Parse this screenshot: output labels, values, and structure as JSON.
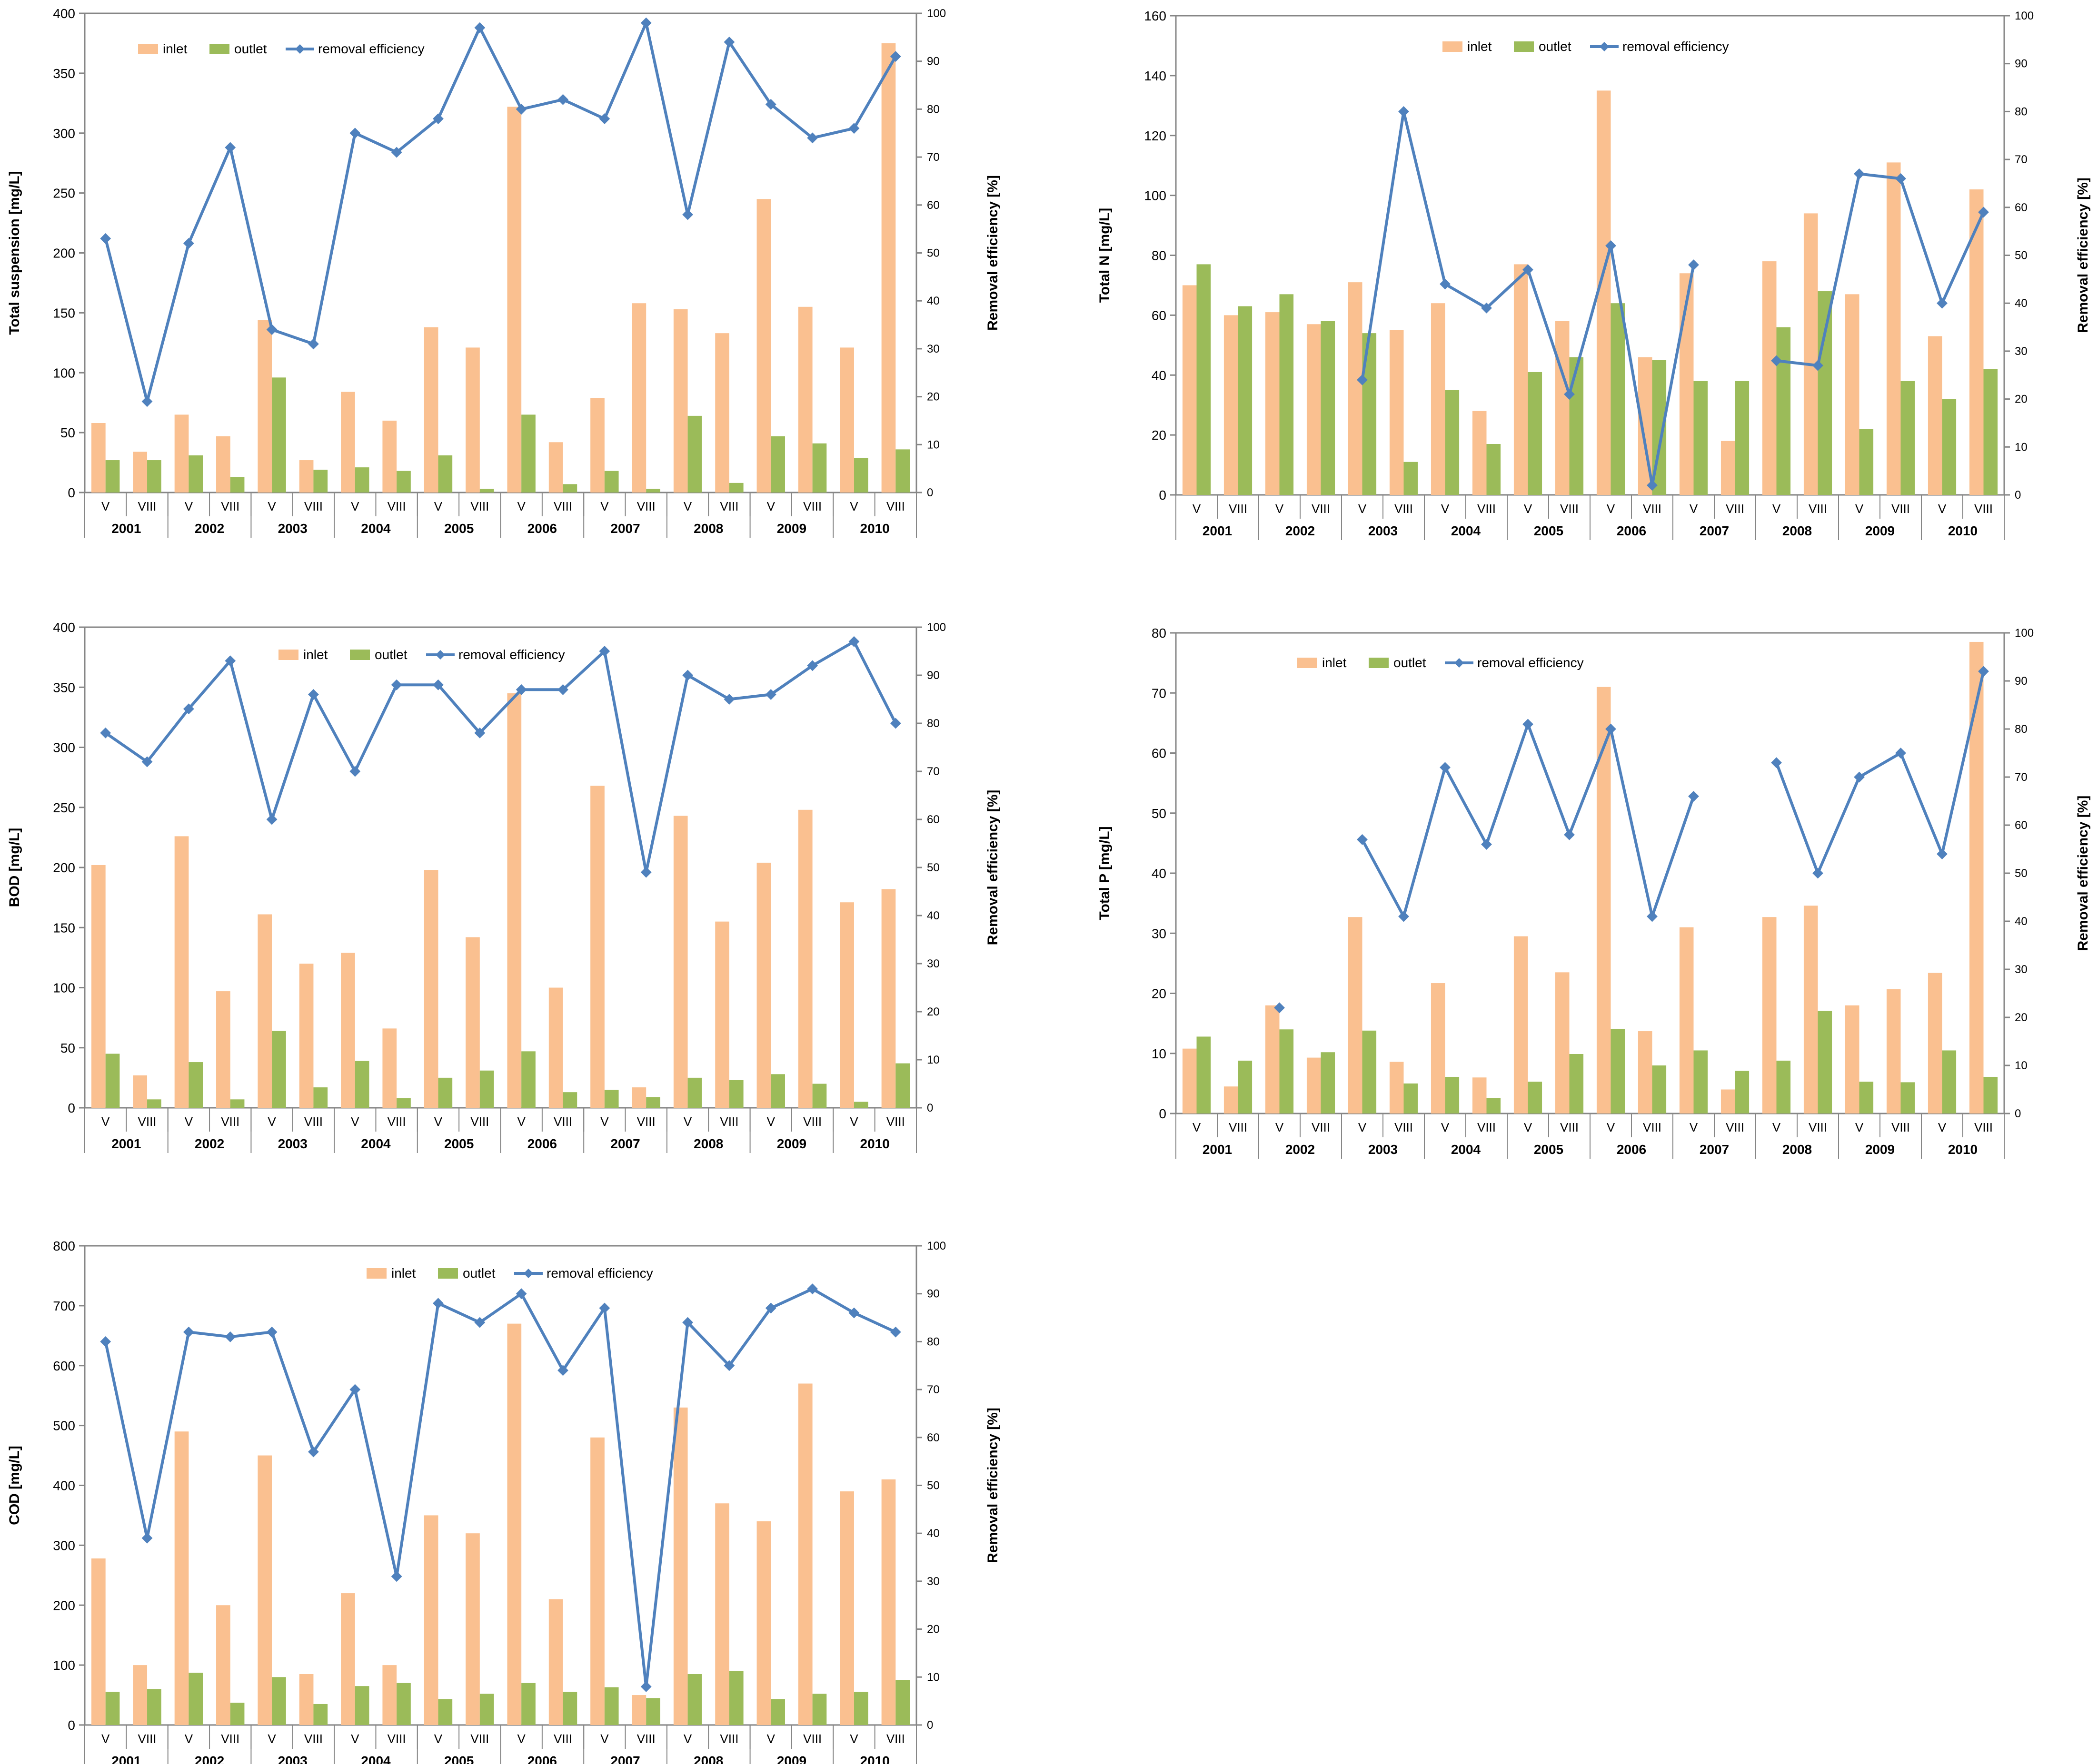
{
  "colors": {
    "inlet": "#fac090",
    "outlet": "#9bbb59",
    "efficiency": "#4f81bd",
    "axis": "#868686",
    "grid": "#d9d9d9",
    "text": "#000000"
  },
  "shared": {
    "years": [
      "2001",
      "2002",
      "2003",
      "2004",
      "2005",
      "2006",
      "2007",
      "2008",
      "2009",
      "2010"
    ],
    "months": [
      "V",
      "VIII"
    ],
    "legend": {
      "inlet": "inlet",
      "outlet": "outlet",
      "efficiency": "removal efficiency"
    },
    "y2label": "Removal efficiency [%]"
  },
  "chart_data": [
    {
      "id": "ts",
      "type": "bar+line",
      "ylabel": "Total suspension [mg/L]",
      "ylim": [
        0,
        400
      ],
      "ystep": 50,
      "y2lim": [
        0,
        100
      ],
      "y2step": 10,
      "legend_position": "top-center",
      "inlet": [
        58,
        34,
        65,
        47,
        144,
        27,
        84,
        60,
        138,
        121,
        322,
        42,
        79,
        158,
        153,
        133,
        245,
        155,
        121,
        375
      ],
      "outlet": [
        27,
        27,
        31,
        13,
        96,
        19,
        21,
        18,
        31,
        3,
        65,
        7,
        18,
        3,
        64,
        8,
        47,
        41,
        29,
        36
      ],
      "efficiency": [
        53,
        19,
        52,
        72,
        34,
        31,
        75,
        71,
        78,
        97,
        80,
        82,
        78,
        98,
        58,
        94,
        81,
        74,
        76,
        91
      ]
    },
    {
      "id": "tn",
      "type": "bar+line",
      "ylabel": "Total N [mg/L]",
      "ylim": [
        0,
        160
      ],
      "ystep": 20,
      "y2lim": [
        0,
        100
      ],
      "y2step": 10,
      "legend_position": "top-center",
      "inlet": [
        70,
        60,
        61,
        57,
        71,
        55,
        64,
        28,
        77,
        58,
        135,
        46,
        74,
        18,
        78,
        94,
        67,
        111,
        53,
        102
      ],
      "outlet": [
        77,
        63,
        67,
        58,
        54,
        11,
        35,
        17,
        41,
        46,
        64,
        45,
        38,
        38,
        56,
        68,
        22,
        38,
        32,
        42
      ],
      "efficiency": [
        null,
        null,
        null,
        null,
        24,
        80,
        44,
        39,
        47,
        21,
        52,
        2,
        48,
        null,
        28,
        27,
        67,
        66,
        40,
        59
      ]
    },
    {
      "id": "bod",
      "type": "bar+line",
      "ylabel": "BOD [mg/L]",
      "ylim": [
        0,
        400
      ],
      "ystep": 50,
      "y2lim": [
        0,
        100
      ],
      "y2step": 10,
      "legend_position": "top-center",
      "inlet": [
        202,
        27,
        226,
        97,
        161,
        120,
        129,
        66,
        198,
        142,
        345,
        100,
        268,
        17,
        243,
        155,
        204,
        248,
        171,
        182
      ],
      "outlet": [
        45,
        7,
        38,
        7,
        64,
        17,
        39,
        8,
        25,
        31,
        47,
        13,
        15,
        9,
        25,
        23,
        28,
        20,
        5,
        37
      ],
      "efficiency": [
        78,
        72,
        83,
        93,
        60,
        86,
        70,
        88,
        88,
        78,
        87,
        87,
        95,
        49,
        90,
        85,
        86,
        92,
        97,
        80
      ]
    },
    {
      "id": "tp",
      "type": "bar+line",
      "ylabel": "Total P [mg/L]",
      "ylim": [
        0,
        80
      ],
      "ystep": 10,
      "y2lim": [
        0,
        100
      ],
      "y2step": 10,
      "legend_position": "top-center",
      "inlet": [
        10.8,
        4.5,
        18,
        9.3,
        32.7,
        8.6,
        21.7,
        6,
        29.5,
        23.5,
        71,
        13.7,
        31,
        4,
        32.7,
        34.6,
        18,
        20.7,
        23.4,
        78.5
      ],
      "outlet": [
        12.8,
        8.8,
        14,
        10.2,
        13.8,
        5,
        6.1,
        2.6,
        5.3,
        9.9,
        14.1,
        8,
        10.5,
        7.1,
        8.8,
        17.1,
        5.3,
        5.2,
        10.5,
        6.1
      ],
      "efficiency": [
        null,
        null,
        22,
        null,
        57,
        41,
        72,
        56,
        81,
        58,
        80,
        41,
        66,
        null,
        73,
        50,
        70,
        75,
        54,
        92
      ]
    },
    {
      "id": "cod",
      "type": "bar+line",
      "ylabel": "COD [mg/L]",
      "ylim": [
        0,
        800
      ],
      "ystep": 100,
      "y2lim": [
        0,
        100
      ],
      "y2step": 10,
      "legend_position": "top-center",
      "inlet": [
        278,
        100,
        490,
        200,
        450,
        85,
        220,
        100,
        350,
        320,
        670,
        210,
        480,
        50,
        530,
        370,
        340,
        570,
        390,
        410
      ],
      "outlet": [
        55,
        60,
        87,
        37,
        80,
        35,
        65,
        70,
        43,
        52,
        70,
        55,
        63,
        45,
        85,
        90,
        43,
        52,
        55,
        75
      ],
      "efficiency": [
        80,
        39,
        82,
        81,
        82,
        57,
        70,
        31,
        88,
        84,
        90,
        74,
        87,
        8,
        84,
        75,
        87,
        91,
        86,
        82
      ]
    }
  ]
}
